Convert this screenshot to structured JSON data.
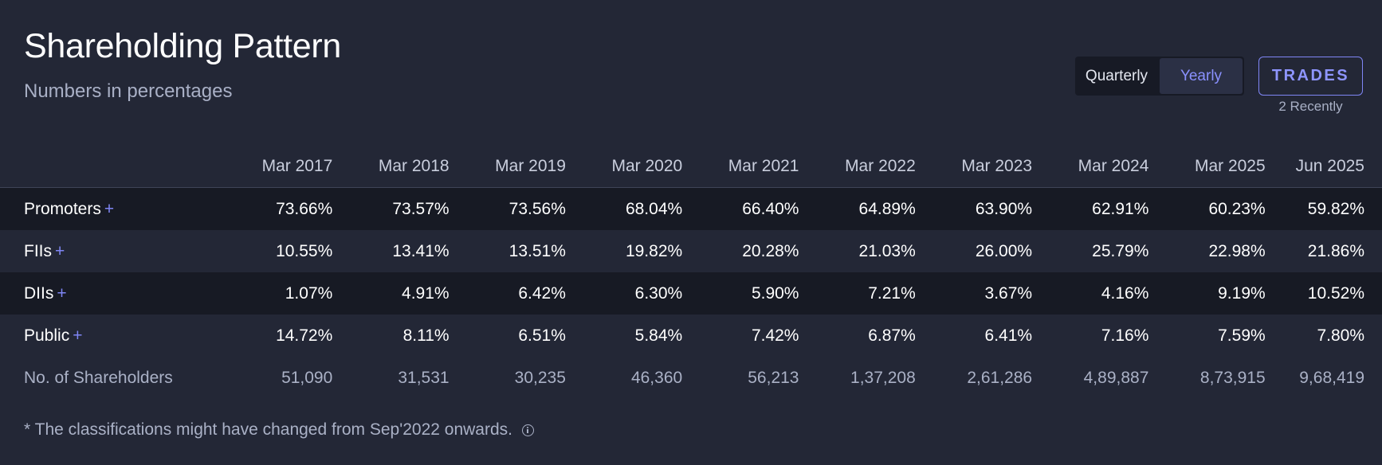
{
  "header": {
    "title": "Shareholding Pattern",
    "subtitle": "Numbers in percentages"
  },
  "toggle": {
    "options": [
      "Quarterly",
      "Yearly"
    ],
    "selected": "Yearly"
  },
  "trades": {
    "label": "TRADES",
    "sublabel": "2 Recently"
  },
  "table": {
    "columns": [
      "Mar 2017",
      "Mar 2018",
      "Mar 2019",
      "Mar 2020",
      "Mar 2021",
      "Mar 2022",
      "Mar 2023",
      "Mar 2024",
      "Mar 2025",
      "Jun 2025"
    ],
    "rows": [
      {
        "label": "Promoters",
        "expand": "+",
        "values": [
          "73.66%",
          "73.57%",
          "73.56%",
          "68.04%",
          "66.40%",
          "64.89%",
          "63.90%",
          "62.91%",
          "60.23%",
          "59.82%"
        ]
      },
      {
        "label": "FIIs",
        "expand": "+",
        "values": [
          "10.55%",
          "13.41%",
          "13.51%",
          "19.82%",
          "20.28%",
          "21.03%",
          "26.00%",
          "25.79%",
          "22.98%",
          "21.86%"
        ]
      },
      {
        "label": "DIIs",
        "expand": "+",
        "values": [
          "1.07%",
          "4.91%",
          "6.42%",
          "6.30%",
          "5.90%",
          "7.21%",
          "3.67%",
          "4.16%",
          "9.19%",
          "10.52%"
        ]
      },
      {
        "label": "Public",
        "expand": "+",
        "values": [
          "14.72%",
          "8.11%",
          "6.51%",
          "5.84%",
          "7.42%",
          "6.87%",
          "6.41%",
          "7.16%",
          "7.59%",
          "7.80%"
        ]
      },
      {
        "label": "No. of Shareholders",
        "values": [
          "51,090",
          "31,531",
          "30,235",
          "46,360",
          "56,213",
          "1,37,208",
          "2,61,286",
          "4,89,887",
          "8,73,915",
          "9,68,419"
        ]
      }
    ]
  },
  "footnote": {
    "text": "* The classifications might have changed from Sep'2022 onwards."
  },
  "colors": {
    "background": "#232736",
    "row_dark": "#171a24",
    "accent": "#7f86f5"
  },
  "icons": {
    "footnote_icon": "info-icon"
  }
}
